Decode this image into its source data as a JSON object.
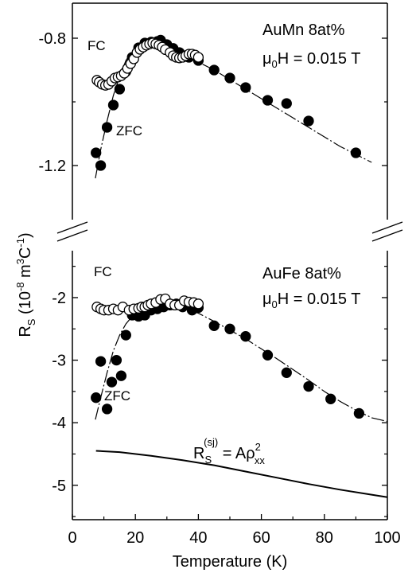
{
  "chart_data": [
    {
      "type": "scatter",
      "panel": "top",
      "sample_label": "AuMn 8at%",
      "field_label": {
        "symbol": "μ",
        "sub": "0",
        "rest": "H = 0.015 T"
      },
      "fc_label": "FC",
      "zfc_label": "ZFC",
      "ylim": [
        -1.37,
        -0.69
      ],
      "ticks": [
        {
          "value": -0.8,
          "label": "-0.8"
        },
        {
          "value": -1.2,
          "label": "-1.2"
        }
      ],
      "series": [
        {
          "name": "FC",
          "marker": "open-circle",
          "points": [
            [
              7.8,
              -0.932
            ],
            [
              8.5,
              -0.938
            ],
            [
              9.5,
              -0.945
            ],
            [
              10.5,
              -0.948
            ],
            [
              11.5,
              -0.945
            ],
            [
              12.5,
              -0.935
            ],
            [
              13.5,
              -0.925
            ],
            [
              14.5,
              -0.922
            ],
            [
              15.5,
              -0.918
            ],
            [
              16.5,
              -0.91
            ],
            [
              17.5,
              -0.895
            ],
            [
              18.5,
              -0.88
            ],
            [
              19.5,
              -0.865
            ],
            [
              20.5,
              -0.845
            ],
            [
              21.5,
              -0.835
            ],
            [
              22.5,
              -0.828
            ],
            [
              23.5,
              -0.822
            ],
            [
              24.5,
              -0.818
            ],
            [
              25.5,
              -0.815
            ],
            [
              26.5,
              -0.818
            ],
            [
              27.5,
              -0.822
            ],
            [
              28.5,
              -0.828
            ],
            [
              29.5,
              -0.836
            ],
            [
              31,
              -0.845
            ],
            [
              32,
              -0.855
            ],
            [
              33,
              -0.86
            ],
            [
              34,
              -0.862
            ],
            [
              35,
              -0.86
            ],
            [
              36,
              -0.855
            ],
            [
              37,
              -0.85
            ],
            [
              38,
              -0.85
            ],
            [
              39,
              -0.853
            ],
            [
              40,
              -0.86
            ]
          ]
        },
        {
          "name": "ZFC",
          "marker": "filled-circle",
          "points": [
            [
              7.5,
              -1.16
            ],
            [
              9,
              -1.2
            ],
            [
              11,
              -1.08
            ],
            [
              13,
              -1.01
            ],
            [
              15,
              -0.96
            ],
            [
              17,
              -0.905
            ],
            [
              19,
              -0.86
            ],
            [
              21,
              -0.83
            ],
            [
              23,
              -0.815
            ],
            [
              25,
              -0.812
            ],
            [
              27,
              -0.81
            ],
            [
              28,
              -0.806
            ],
            [
              30,
              -0.82
            ],
            [
              32,
              -0.832
            ],
            [
              34,
              -0.845
            ],
            [
              37,
              -0.86
            ],
            [
              40,
              -0.87
            ],
            [
              45,
              -0.9
            ],
            [
              50,
              -0.925
            ],
            [
              55,
              -0.955
            ],
            [
              62,
              -0.995
            ],
            [
              68,
              -1.005
            ],
            [
              75,
              -1.06
            ],
            [
              90,
              -1.16
            ]
          ]
        }
      ],
      "fit_curve": [
        [
          7.3,
          -1.24
        ],
        [
          9,
          -1.15
        ],
        [
          11,
          -1.06
        ],
        [
          13,
          -0.98
        ],
        [
          15,
          -0.92
        ],
        [
          17,
          -0.87
        ],
        [
          19,
          -0.84
        ],
        [
          21,
          -0.825
        ],
        [
          23,
          -0.82
        ],
        [
          25,
          -0.818
        ],
        [
          27,
          -0.818
        ],
        [
          29,
          -0.823
        ],
        [
          32,
          -0.835
        ],
        [
          35,
          -0.85
        ],
        [
          40,
          -0.875
        ],
        [
          45,
          -0.9
        ],
        [
          50,
          -0.93
        ],
        [
          55,
          -0.96
        ],
        [
          60,
          -0.99
        ],
        [
          65,
          -1.02
        ],
        [
          70,
          -1.05
        ],
        [
          75,
          -1.08
        ],
        [
          80,
          -1.11
        ],
        [
          85,
          -1.14
        ],
        [
          90,
          -1.165
        ],
        [
          95,
          -1.19
        ]
      ]
    },
    {
      "type": "scatter",
      "panel": "bottom",
      "sample_label": "AuFe 8at%",
      "field_label": {
        "symbol": "μ",
        "sub": "0",
        "rest": "H = 0.015 T"
      },
      "fc_label": "FC",
      "zfc_label": "ZFC",
      "ylim": [
        -5.55,
        -1.25
      ],
      "ticks": [
        {
          "value": -2,
          "label": "-2"
        },
        {
          "value": -3,
          "label": "-3"
        },
        {
          "value": -4,
          "label": "-4"
        },
        {
          "value": -5,
          "label": "-5"
        }
      ],
      "formula_label": {
        "main": "R",
        "sub": "S",
        "sup": "(sj)",
        "rest": " = Aρ",
        "rsup": "2",
        "rsub": "xx"
      },
      "series": [
        {
          "name": "FC",
          "marker": "open-circle",
          "points": [
            [
              7.8,
              -2.15
            ],
            [
              9,
              -2.18
            ],
            [
              10,
              -2.2
            ],
            [
              11.5,
              -2.2
            ],
            [
              13,
              -2.18
            ],
            [
              14.5,
              -2.2
            ],
            [
              16,
              -2.15
            ],
            [
              18,
              -2.2
            ],
            [
              19.5,
              -2.18
            ],
            [
              21,
              -2.17
            ],
            [
              22,
              -2.15
            ],
            [
              23,
              -2.15
            ],
            [
              24,
              -2.12
            ],
            [
              25,
              -2.1
            ],
            [
              26.5,
              -2.08
            ],
            [
              28,
              -2.03
            ],
            [
              29.5,
              -2.02
            ],
            [
              31,
              -2.1
            ],
            [
              32.5,
              -2.12
            ],
            [
              34,
              -2.12
            ],
            [
              35.5,
              -2.05
            ],
            [
              37,
              -2.07
            ],
            [
              38.5,
              -2.08
            ],
            [
              40,
              -2.1
            ]
          ]
        },
        {
          "name": "ZFC",
          "marker": "filled-circle",
          "points": [
            [
              7.5,
              -3.6
            ],
            [
              9,
              -3.02
            ],
            [
              11,
              -3.78
            ],
            [
              12.5,
              -3.35
            ],
            [
              14,
              -3.0
            ],
            [
              15.5,
              -3.25
            ],
            [
              17,
              -2.6
            ],
            [
              19,
              -2.28
            ],
            [
              21,
              -2.3
            ],
            [
              23,
              -2.28
            ],
            [
              25,
              -2.2
            ],
            [
              27,
              -2.18
            ],
            [
              29,
              -2.15
            ],
            [
              31,
              -2.12
            ],
            [
              33,
              -2.1
            ],
            [
              35,
              -2.15
            ],
            [
              38,
              -2.2
            ],
            [
              40,
              -2.16
            ],
            [
              45,
              -2.45
            ],
            [
              50,
              -2.5
            ],
            [
              55,
              -2.62
            ],
            [
              62,
              -2.92
            ],
            [
              68,
              -3.2
            ],
            [
              75,
              -3.42
            ],
            [
              82,
              -3.62
            ],
            [
              91,
              -3.85
            ]
          ]
        }
      ],
      "fit_curve": [
        [
          7.3,
          -3.95
        ],
        [
          9,
          -3.6
        ],
        [
          11,
          -3.2
        ],
        [
          13,
          -2.85
        ],
        [
          15,
          -2.6
        ],
        [
          17,
          -2.42
        ],
        [
          19,
          -2.3
        ],
        [
          21,
          -2.24
        ],
        [
          23,
          -2.2
        ],
        [
          25,
          -2.18
        ],
        [
          27,
          -2.17
        ],
        [
          29,
          -2.16
        ],
        [
          31,
          -2.15
        ],
        [
          33,
          -2.16
        ],
        [
          35,
          -2.18
        ],
        [
          38,
          -2.22
        ],
        [
          40,
          -2.25
        ],
        [
          45,
          -2.38
        ],
        [
          50,
          -2.52
        ],
        [
          55,
          -2.66
        ],
        [
          60,
          -2.82
        ],
        [
          65,
          -2.98
        ],
        [
          70,
          -3.15
        ],
        [
          75,
          -3.32
        ],
        [
          80,
          -3.5
        ],
        [
          85,
          -3.66
        ],
        [
          90,
          -3.8
        ],
        [
          95,
          -3.92
        ],
        [
          100,
          -3.98
        ]
      ],
      "sj_curve": [
        [
          7.5,
          -4.45
        ],
        [
          15,
          -4.47
        ],
        [
          25,
          -4.53
        ],
        [
          35,
          -4.6
        ],
        [
          45,
          -4.68
        ],
        [
          55,
          -4.78
        ],
        [
          65,
          -4.88
        ],
        [
          75,
          -4.98
        ],
        [
          85,
          -5.07
        ],
        [
          95,
          -5.15
        ],
        [
          100,
          -5.19
        ]
      ]
    }
  ],
  "x_axis": {
    "label": "Temperature (K)",
    "xlim": [
      0,
      100
    ],
    "ticks": [
      "0",
      "20",
      "40",
      "60",
      "80",
      "100"
    ]
  },
  "y_axis_label": {
    "main": "R",
    "sub": "S",
    "units": " (10",
    "exp1": "-8",
    "m": " m",
    "exp2": "3",
    "c": "C",
    "exp3": "-1",
    "close": ")"
  }
}
